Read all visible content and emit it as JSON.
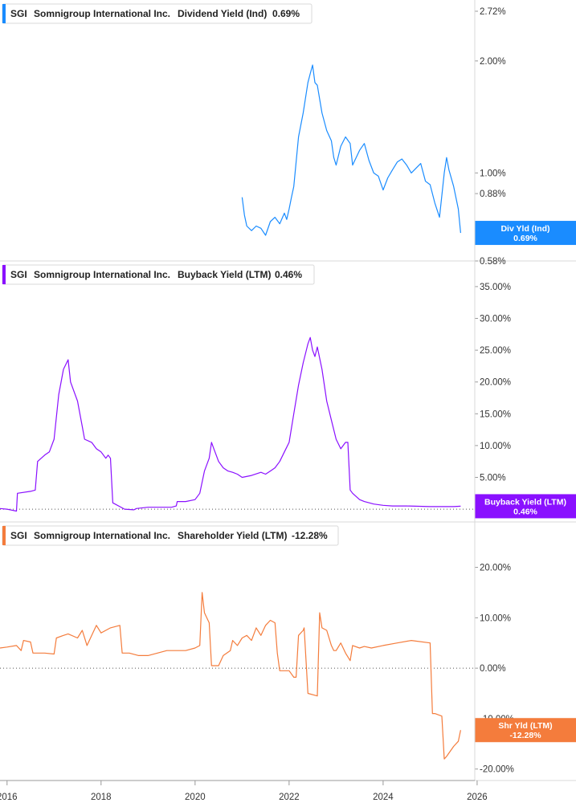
{
  "colors": {
    "dividend": "#1a8cff",
    "buyback": "#8a10ff",
    "shareholder": "#f47c3c",
    "grid": "#d9d9d9",
    "zero_line": "#555555"
  },
  "x_axis": {
    "range": [
      2015.85,
      2025.95
    ],
    "ticks": [
      "2016",
      "2018",
      "2020",
      "2022",
      "2024",
      "2026"
    ],
    "tick_values": [
      2016,
      2018,
      2020,
      2022,
      2024,
      2026
    ]
  },
  "chart_data": [
    {
      "type": "line",
      "ticker": "SGI",
      "company": "Somnigroup International Inc.",
      "metric": "Dividend Yield (Ind)",
      "value_label": "0.69%",
      "badge": {
        "line1": "Div Yld (Ind)",
        "line2": "0.69%"
      },
      "y_scale": "log",
      "ylim": [
        0.58,
        2.72
      ],
      "y_ticks": [
        {
          "value": 2.72,
          "label": "2.72%"
        },
        {
          "value": 2.0,
          "label": "2.00%"
        },
        {
          "value": 1.0,
          "label": "1.00%"
        },
        {
          "value": 0.88,
          "label": "0.88%"
        },
        {
          "value": 0.58,
          "label": "0.58%"
        }
      ],
      "series": [
        {
          "x": [
            2021.0,
            2021.05,
            2021.1,
            2021.2,
            2021.3,
            2021.4,
            2021.5,
            2021.6,
            2021.7,
            2021.8,
            2021.9,
            2021.95,
            2022.0,
            2022.05,
            2022.1,
            2022.2,
            2022.3,
            2022.4,
            2022.45,
            2022.5,
            2022.55,
            2022.6,
            2022.7,
            2022.8,
            2022.9,
            2022.95,
            2023.0,
            2023.1,
            2023.2,
            2023.3,
            2023.35,
            2023.5,
            2023.6,
            2023.7,
            2023.8,
            2023.9,
            2024.0,
            2024.1,
            2024.2,
            2024.3,
            2024.4,
            2024.5,
            2024.6,
            2024.7,
            2024.8,
            2024.9,
            2025.0,
            2025.1,
            2025.2,
            2025.3,
            2025.35,
            2025.4,
            2025.5,
            2025.6,
            2025.65
          ],
          "y": [
            0.86,
            0.77,
            0.72,
            0.7,
            0.72,
            0.71,
            0.68,
            0.74,
            0.76,
            0.73,
            0.78,
            0.75,
            0.8,
            0.86,
            0.92,
            1.25,
            1.45,
            1.75,
            1.85,
            1.95,
            1.75,
            1.72,
            1.45,
            1.3,
            1.22,
            1.1,
            1.05,
            1.18,
            1.25,
            1.2,
            1.05,
            1.15,
            1.2,
            1.08,
            1.0,
            0.98,
            0.9,
            0.97,
            1.02,
            1.07,
            1.09,
            1.05,
            1.0,
            1.03,
            1.06,
            0.95,
            0.93,
            0.83,
            0.76,
            1.0,
            1.1,
            1.02,
            0.92,
            0.8,
            0.69
          ]
        }
      ]
    },
    {
      "type": "line",
      "ticker": "SGI",
      "company": "Somnigroup International Inc.",
      "metric": "Buyback Yield (LTM)",
      "value_label": "0.46%",
      "badge": {
        "line1": "Buyback Yield (LTM)",
        "line2": "0.46%"
      },
      "y_scale": "linear",
      "ylim": [
        -1.0,
        36.0
      ],
      "y_ticks": [
        {
          "value": 35,
          "label": "35.00%"
        },
        {
          "value": 30,
          "label": "30.00%"
        },
        {
          "value": 25,
          "label": "25.00%"
        },
        {
          "value": 20,
          "label": "20.00%"
        },
        {
          "value": 15,
          "label": "15.00%"
        },
        {
          "value": 10,
          "label": "10.00%"
        },
        {
          "value": 5,
          "label": "5.00%"
        }
      ],
      "zero_line": 0,
      "series": [
        {
          "x": [
            2015.85,
            2016.0,
            2016.2,
            2016.22,
            2016.5,
            2016.6,
            2016.65,
            2016.8,
            2016.9,
            2017.0,
            2017.1,
            2017.2,
            2017.3,
            2017.35,
            2017.5,
            2017.6,
            2017.65,
            2017.8,
            2017.9,
            2018.0,
            2018.1,
            2018.15,
            2018.2,
            2018.25,
            2018.5,
            2018.7,
            2018.75,
            2019.0,
            2019.5,
            2019.6,
            2019.62,
            2019.8,
            2020.0,
            2020.1,
            2020.2,
            2020.3,
            2020.35,
            2020.4,
            2020.5,
            2020.6,
            2020.7,
            2020.8,
            2020.9,
            2021.0,
            2021.2,
            2021.4,
            2021.5,
            2021.6,
            2021.7,
            2021.8,
            2021.9,
            2022.0,
            2022.1,
            2022.2,
            2022.3,
            2022.4,
            2022.45,
            2022.5,
            2022.55,
            2022.6,
            2022.7,
            2022.8,
            2022.9,
            2023.0,
            2023.1,
            2023.2,
            2023.25,
            2023.3,
            2023.35,
            2023.5,
            2023.6,
            2023.8,
            2024.0,
            2024.2,
            2024.5,
            2025.0,
            2025.5,
            2025.65
          ],
          "y": [
            0.1,
            0.0,
            -0.3,
            2.5,
            2.8,
            3.0,
            7.5,
            8.5,
            9.0,
            11.0,
            18.0,
            22.0,
            23.5,
            20.0,
            17.0,
            13.0,
            11.0,
            10.5,
            9.5,
            9.0,
            8.0,
            8.5,
            8.0,
            1.0,
            0.0,
            -0.1,
            0.1,
            0.3,
            0.3,
            0.5,
            1.2,
            1.2,
            1.5,
            2.5,
            6.0,
            8.0,
            10.5,
            9.5,
            7.5,
            6.5,
            6.0,
            5.8,
            5.5,
            5.0,
            5.3,
            5.8,
            5.5,
            6.0,
            6.5,
            7.5,
            9.0,
            10.5,
            15.0,
            19.5,
            23.0,
            26.0,
            27.0,
            25.0,
            24.0,
            25.5,
            22.0,
            17.0,
            14.0,
            11.0,
            9.5,
            10.5,
            10.5,
            3.0,
            2.5,
            1.5,
            1.2,
            0.8,
            0.6,
            0.5,
            0.5,
            0.4,
            0.4,
            0.46
          ]
        }
      ]
    },
    {
      "type": "line",
      "ticker": "SGI",
      "company": "Somnigroup International Inc.",
      "metric": "Shareholder Yield (LTM)",
      "value_label": "-12.28%",
      "badge": {
        "line1": "Shr Yld (LTM)",
        "line2": "-12.28%"
      },
      "y_scale": "linear",
      "ylim": [
        -21.0,
        25.5
      ],
      "y_ticks": [
        {
          "value": 20,
          "label": "20.00%"
        },
        {
          "value": 10,
          "label": "10.00%"
        },
        {
          "value": 0,
          "label": "0.00%"
        },
        {
          "value": -10,
          "label": "-10.00%"
        },
        {
          "value": -20,
          "label": "-20.00%"
        }
      ],
      "zero_line": 0,
      "series": [
        {
          "x": [
            2015.85,
            2016.0,
            2016.2,
            2016.3,
            2016.35,
            2016.5,
            2016.55,
            2016.8,
            2017.0,
            2017.05,
            2017.2,
            2017.3,
            2017.5,
            2017.6,
            2017.7,
            2017.9,
            2018.0,
            2018.2,
            2018.4,
            2018.45,
            2018.6,
            2018.8,
            2019.0,
            2019.2,
            2019.4,
            2019.6,
            2019.8,
            2020.0,
            2020.1,
            2020.15,
            2020.2,
            2020.3,
            2020.35,
            2020.5,
            2020.6,
            2020.75,
            2020.8,
            2020.9,
            2021.0,
            2021.1,
            2021.2,
            2021.3,
            2021.4,
            2021.5,
            2021.6,
            2021.7,
            2021.75,
            2021.8,
            2022.0,
            2022.1,
            2022.15,
            2022.2,
            2022.3,
            2022.32,
            2022.4,
            2022.6,
            2022.65,
            2022.7,
            2022.8,
            2022.9,
            2022.95,
            2023.0,
            2023.1,
            2023.2,
            2023.3,
            2023.35,
            2023.5,
            2023.6,
            2023.75,
            2024.0,
            2024.3,
            2024.6,
            2025.0,
            2025.05,
            2025.1,
            2025.25,
            2025.3,
            2025.35,
            2025.5,
            2025.6,
            2025.65
          ],
          "y": [
            4.0,
            4.2,
            4.5,
            3.5,
            5.5,
            5.2,
            3.0,
            3.0,
            2.8,
            6.0,
            6.5,
            6.8,
            6.0,
            7.5,
            4.5,
            8.5,
            7.0,
            8.0,
            8.5,
            3.0,
            3.0,
            2.5,
            2.5,
            3.0,
            3.5,
            3.5,
            3.5,
            4.0,
            4.5,
            15.0,
            11.0,
            9.0,
            0.5,
            0.5,
            2.5,
            3.5,
            5.5,
            4.5,
            6.0,
            6.5,
            5.5,
            8.0,
            6.5,
            8.5,
            9.5,
            9.0,
            3.0,
            -0.5,
            -0.5,
            -1.8,
            -1.8,
            6.5,
            7.5,
            8.0,
            -5.0,
            -5.5,
            11.0,
            8.0,
            7.5,
            4.5,
            3.5,
            3.5,
            5.0,
            3.0,
            1.5,
            4.5,
            4.0,
            4.3,
            4.0,
            4.5,
            5.0,
            5.5,
            5.0,
            -9.0,
            -9.0,
            -9.5,
            -18.0,
            -17.5,
            -15.5,
            -14.5,
            -12.28
          ]
        }
      ]
    }
  ]
}
